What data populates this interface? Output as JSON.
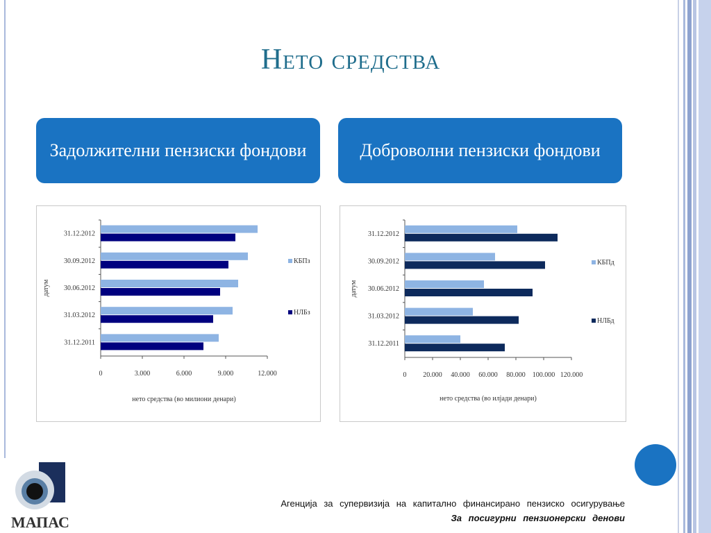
{
  "title": "Нето средства",
  "panels": {
    "left_label": "Задолжителни пензиски фондови",
    "right_label": "Доброволни пензиски фондови"
  },
  "chart_data": [
    {
      "type": "bar",
      "orientation": "horizontal",
      "categories": [
        "31.12.2012",
        "30.09.2012",
        "30.06.2012",
        "31.03.2012",
        "31.12.2011"
      ],
      "series": [
        {
          "name": "КБПз",
          "color": "#8eb4e3",
          "values": [
            11300,
            10600,
            9900,
            9500,
            8500
          ]
        },
        {
          "name": "НЛБз",
          "color": "#00007f",
          "values": [
            9700,
            9200,
            8600,
            8100,
            7400
          ]
        }
      ],
      "xlabel": "нето средства (во милиони денари)",
      "ylabel": "датум",
      "xlim": [
        0,
        12000
      ],
      "xticks": [
        "0",
        "3.000",
        "6.000",
        "9.000",
        "12.000"
      ],
      "xtick_values": [
        0,
        3000,
        6000,
        9000,
        12000
      ],
      "legend": "right"
    },
    {
      "type": "bar",
      "orientation": "horizontal",
      "categories": [
        "31.12.2012",
        "30.09.2012",
        "30.06.2012",
        "31.03.2012",
        "31.12.2011"
      ],
      "series": [
        {
          "name": "КБПд",
          "color": "#8eb4e3",
          "values": [
            81000,
            65000,
            57000,
            49000,
            40000
          ]
        },
        {
          "name": "НЛБд",
          "color": "#0d2a5c",
          "values": [
            110000,
            101000,
            92000,
            82000,
            72000
          ]
        }
      ],
      "xlabel": "нето средства (во илјади денари)",
      "ylabel": "датум",
      "xlim": [
        0,
        120000
      ],
      "xticks": [
        "0",
        "20.000",
        "40.000",
        "60.000",
        "80.000",
        "100.000",
        "120.000"
      ],
      "xtick_values": [
        0,
        20000,
        40000,
        60000,
        80000,
        100000,
        120000
      ],
      "legend": "right"
    }
  ],
  "footer": {
    "line1": "Агенција за супервизија на капитално финансирано пензиско осигурување",
    "line2": "За посигурни пензионерски денови"
  },
  "logo": {
    "text": "МАПАС",
    "icon": "eye-logo-icon"
  },
  "colors": {
    "accent": "#1a73c2",
    "title": "#1f6d8c"
  }
}
